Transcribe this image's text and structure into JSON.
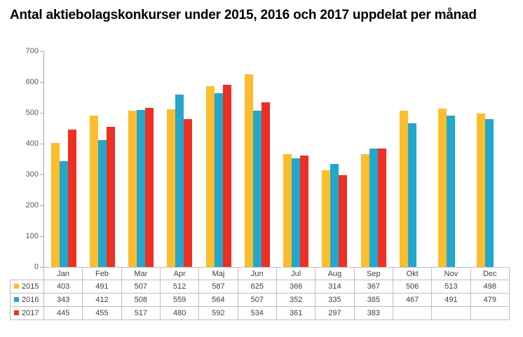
{
  "title": "Antal aktiebolagskonkurser under 2015, 2016 och 2017 uppdelat per månad",
  "colors": {
    "series_2015": "#FCBE2D",
    "series_2016": "#23A7CC",
    "series_2017": "#ED3024",
    "axis_line": "#A6A6A6",
    "axis_label_text": "#595959",
    "table_border": "#BFBFBF",
    "table_text": "#404040",
    "title_text": "#000000",
    "background": "#FFFFFF"
  },
  "chart_data": {
    "type": "bar",
    "title": "Antal aktiebolagskonkurser under 2015, 2016 och 2017 uppdelat per månad",
    "xlabel": "",
    "ylabel": "",
    "categories": [
      "Jan",
      "Feb",
      "Mar",
      "Apr",
      "Maj",
      "Jun",
      "Jul",
      "Aug",
      "Sep",
      "Okt",
      "Nov",
      "Dec"
    ],
    "series": [
      {
        "name": "2015",
        "color": "#FCBE2D",
        "values": [
          403,
          491,
          507,
          512,
          587,
          625,
          366,
          314,
          367,
          506,
          513,
          498
        ]
      },
      {
        "name": "2016",
        "color": "#23A7CC",
        "values": [
          343,
          412,
          508,
          559,
          564,
          507,
          352,
          335,
          385,
          467,
          491,
          479
        ]
      },
      {
        "name": "2017",
        "color": "#ED3024",
        "values": [
          445,
          455,
          517,
          480,
          592,
          534,
          361,
          297,
          383,
          null,
          null,
          null
        ]
      }
    ],
    "ylim": [
      0,
      700
    ],
    "yticks": [
      0,
      100,
      200,
      300,
      400,
      500,
      600,
      700
    ],
    "grid": false,
    "legend_position": "table-left",
    "data_labels_in_table": true
  }
}
